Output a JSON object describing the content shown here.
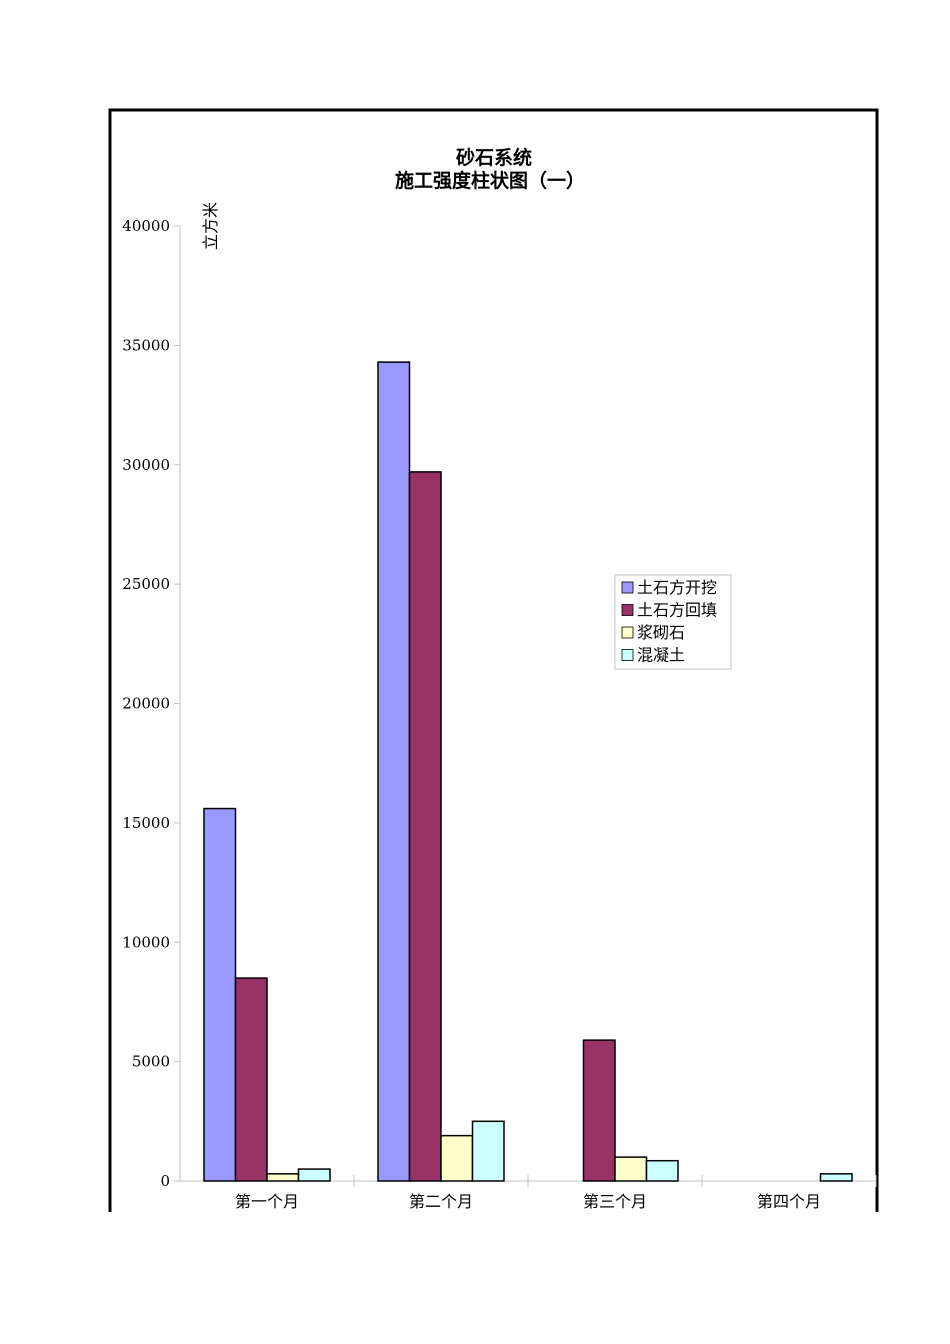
{
  "chart_data": {
    "type": "bar",
    "title_line1": "砂石系统",
    "title_line2": "施工强度柱状图（一）",
    "ylabel": "立方米",
    "xlabel": "",
    "ylim": [
      0,
      40000
    ],
    "yticks": [
      0,
      5000,
      10000,
      15000,
      20000,
      25000,
      30000,
      35000,
      40000
    ],
    "categories": [
      "第一个月",
      "第二个月",
      "第三个月",
      "第四个月"
    ],
    "series": [
      {
        "name": "土石方开挖",
        "color": "#9999ff",
        "values": [
          15600,
          34300,
          0,
          0
        ]
      },
      {
        "name": "土石方回填",
        "color": "#993366",
        "values": [
          8500,
          29700,
          5900,
          0
        ]
      },
      {
        "name": "浆砌石",
        "color": "#ffffcc",
        "values": [
          300,
          1900,
          1000,
          0
        ]
      },
      {
        "name": "混凝土",
        "color": "#ccffff",
        "values": [
          500,
          2500,
          850,
          300
        ]
      }
    ],
    "legend_position": "right",
    "grid": false
  }
}
